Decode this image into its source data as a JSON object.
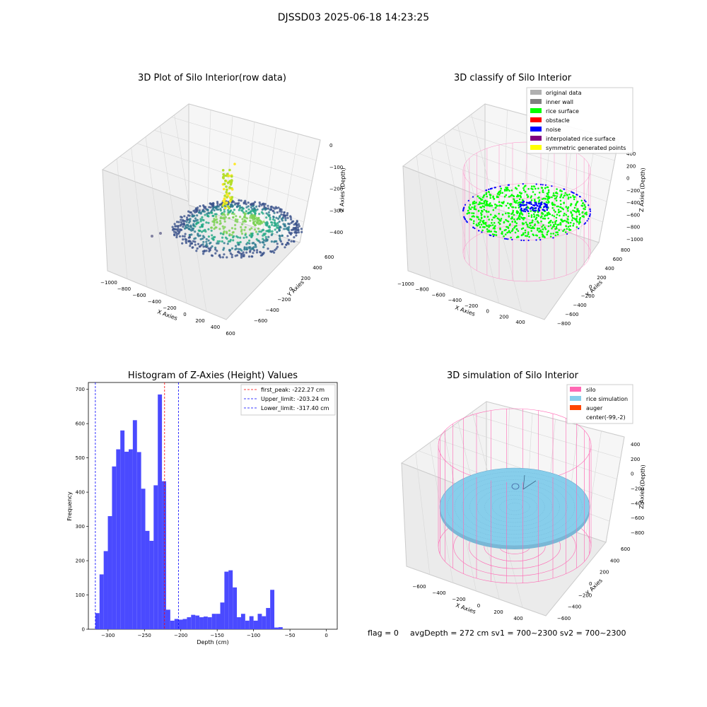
{
  "suptitle": "DJSSD03 2025-06-18 14:23:25",
  "panels": {
    "raw": {
      "title": "3D Plot of Silo Interior(row data)",
      "xlabel": "X Axies",
      "ylabel": "Y Axies",
      "zlabel": "Z Axies (Depth)",
      "xticks": [
        "−1000",
        "−800",
        "−600",
        "−400",
        "−200",
        "0",
        "200",
        "400",
        "600"
      ],
      "yticks": [
        "−600",
        "−400",
        "−200",
        "0",
        "200",
        "400",
        "600"
      ],
      "zticks": [
        "0",
        "−100",
        "−200",
        "−300",
        "−400"
      ]
    },
    "classify": {
      "title": "3D classify of Silo Interior",
      "xlabel": "X Axies",
      "ylabel": "Y Axies",
      "zlabel": "Z Axies (Depth)",
      "xticks": [
        "−1000",
        "−800",
        "−600",
        "−400",
        "−200",
        "0",
        "200",
        "400"
      ],
      "yticks": [
        "−800",
        "−600",
        "−400",
        "−200",
        "0",
        "200",
        "400",
        "600",
        "800"
      ],
      "zticks": [
        "400",
        "200",
        "0",
        "−200",
        "−400",
        "−600",
        "−800",
        "−1000"
      ],
      "legend": [
        {
          "label": "original data",
          "color": "#b0b0b0"
        },
        {
          "label": "inner wall",
          "color": "#808080"
        },
        {
          "label": "rice surface",
          "color": "#00ff00"
        },
        {
          "label": "obstacle",
          "color": "#ff0000"
        },
        {
          "label": "noise",
          "color": "#0000ff"
        },
        {
          "label": "interpolated rice surface",
          "color": "#800080"
        },
        {
          "label": "symmetric generated points",
          "color": "#ffff00"
        }
      ]
    },
    "simulation": {
      "title": "3D simulation of Silo Interior",
      "xlabel": "X Axies",
      "ylabel": "Y Axies",
      "zlabel": "Z Axies (Depth)",
      "xticks": [
        "−600",
        "−400",
        "−200",
        "0",
        "200",
        "400"
      ],
      "yticks": [
        "−600",
        "−400",
        "−200",
        "0",
        "200",
        "400",
        "600"
      ],
      "zticks": [
        "400",
        "200",
        "0",
        "−200",
        "−400",
        "−600",
        "−800"
      ],
      "legend": [
        {
          "label": "silo",
          "color": "#ff69b4"
        },
        {
          "label": "rice simulation",
          "color": "#87ceeb"
        },
        {
          "label": "auger",
          "color": "#ff4500"
        },
        {
          "label": "center(-99,-2)",
          "color": ""
        }
      ],
      "footer": {
        "flag": "flag = 0",
        "avg": "avgDepth = 272 cm  sv1 = 700~2300  sv2 = 700~2300"
      }
    }
  },
  "chart_data": {
    "type": "bar",
    "title": "Histogram of Z-Axies (Height) Values",
    "xlabel": "Depth (cm)",
    "ylabel": "Frequency",
    "xlim": [
      -327,
      15
    ],
    "ylim": [
      0,
      720
    ],
    "xticks": [
      -300,
      -250,
      -200,
      -150,
      -100,
      -50,
      0
    ],
    "yticks": [
      0,
      100,
      200,
      300,
      400,
      500,
      600,
      700
    ],
    "bin_start": -317.4,
    "bin_width": 5.72,
    "color": "#4a4aff",
    "values": [
      47,
      160,
      228,
      330,
      475,
      525,
      580,
      518,
      525,
      610,
      517,
      410,
      287,
      258,
      420,
      685,
      432,
      57,
      25,
      30,
      28,
      30,
      35,
      42,
      40,
      35,
      37,
      35,
      45,
      45,
      78,
      168,
      172,
      122,
      35,
      45,
      25,
      38,
      25,
      45,
      38,
      62,
      115,
      5,
      6
    ],
    "vlines": [
      {
        "x": -222.27,
        "color": "#ff0000",
        "label": "first_peak: -222.27 cm"
      },
      {
        "x": -203.24,
        "color": "#0000ff",
        "label": "Upper_limit: -203.24 cm"
      },
      {
        "x": -317.4,
        "color": "#0000ff",
        "label": "Lower_limit: -317.40 cm"
      }
    ]
  }
}
